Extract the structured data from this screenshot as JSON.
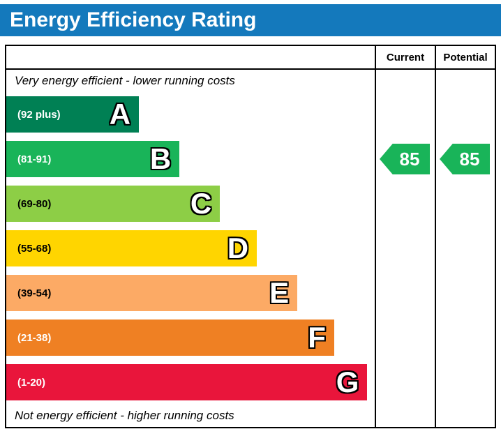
{
  "title": "Energy Efficiency Rating",
  "columns": {
    "current": "Current",
    "potential": "Potential"
  },
  "captions": {
    "top": "Very energy efficient - lower running costs",
    "bottom": "Not energy efficient - higher running costs"
  },
  "bands": [
    {
      "letter": "A",
      "range": "(92 plus)",
      "color": "#008054",
      "text_color": "#ffffff",
      "width": "36%"
    },
    {
      "letter": "B",
      "range": "(81-91)",
      "color": "#19b459",
      "text_color": "#ffffff",
      "width": "47%"
    },
    {
      "letter": "C",
      "range": "(69-80)",
      "color": "#8dce46",
      "text_color": "#000000",
      "width": "58%"
    },
    {
      "letter": "D",
      "range": "(55-68)",
      "color": "#ffd500",
      "text_color": "#000000",
      "width": "68%"
    },
    {
      "letter": "E",
      "range": "(39-54)",
      "color": "#fcaa65",
      "text_color": "#000000",
      "width": "79%"
    },
    {
      "letter": "F",
      "range": "(21-38)",
      "color": "#ef8023",
      "text_color": "#ffffff",
      "width": "89%"
    },
    {
      "letter": "G",
      "range": "(1-20)",
      "color": "#e9153b",
      "text_color": "#ffffff",
      "width": "98%"
    }
  ],
  "ratings": {
    "current": {
      "value": "85",
      "band": "B",
      "band_index": 1,
      "color": "#19b459"
    },
    "potential": {
      "value": "85",
      "band": "B",
      "band_index": 1,
      "color": "#19b459"
    }
  },
  "theme": {
    "header_bg": "#1479bc",
    "header_text": "#ffffff",
    "border": "#000000"
  },
  "chart_data": {
    "type": "bar",
    "title": "Energy Efficiency Rating",
    "categories": [
      "A",
      "B",
      "C",
      "D",
      "E",
      "F",
      "G"
    ],
    "band_ranges": [
      "92 plus",
      "81-91",
      "69-80",
      "55-68",
      "39-54",
      "21-38",
      "1-20"
    ],
    "band_colors": [
      "#008054",
      "#19b459",
      "#8dce46",
      "#ffd500",
      "#fcaa65",
      "#ef8023",
      "#e9153b"
    ],
    "bar_widths_pct": [
      36,
      47,
      58,
      68,
      79,
      89,
      98
    ],
    "series": [
      {
        "name": "Current",
        "values": [
          85
        ],
        "band": "B"
      },
      {
        "name": "Potential",
        "values": [
          85
        ],
        "band": "B"
      }
    ],
    "annotations": [
      "Very energy efficient - lower running costs",
      "Not energy efficient - higher running costs"
    ],
    "legend_position": "none",
    "grid": false
  }
}
